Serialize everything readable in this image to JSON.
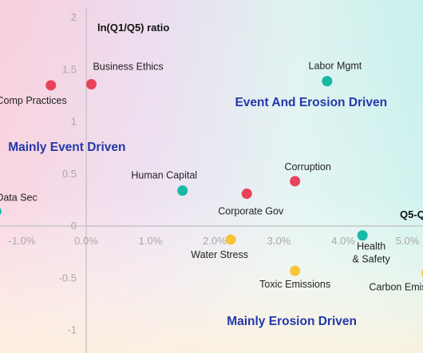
{
  "chart_data": {
    "type": "scatter",
    "ylabel": "ln(Q1/Q5) ratio",
    "xlabel": "Q5-Q",
    "xlim": [
      -1.3,
      5.3
    ],
    "ylim": [
      -1.0,
      2.0
    ],
    "x_ticks": [
      {
        "value": -1.0,
        "label": "-1.0%"
      },
      {
        "value": 0.0,
        "label": "0.0%"
      },
      {
        "value": 1.0,
        "label": "1.0%"
      },
      {
        "value": 2.0,
        "label": "2.0%"
      },
      {
        "value": 3.0,
        "label": "3.0%"
      },
      {
        "value": 4.0,
        "label": "4.0%"
      },
      {
        "value": 5.0,
        "label": "5.0%"
      }
    ],
    "y_ticks": [
      {
        "value": 2.0,
        "label": "2"
      },
      {
        "value": 1.5,
        "label": "1.5"
      },
      {
        "value": 1.0,
        "label": "1"
      },
      {
        "value": 0.5,
        "label": "0.5"
      },
      {
        "value": 0.0,
        "label": "0"
      },
      {
        "value": -0.5,
        "label": "-0.5"
      },
      {
        "value": -1.0,
        "label": "-1"
      }
    ],
    "quadrant_labels": [
      {
        "text": "Event And Erosion Driven",
        "x": 3.5,
        "y": 1.15
      },
      {
        "text": "Mainly Event Driven",
        "x": -0.3,
        "y": 0.72
      },
      {
        "text": "Mainly Erosion Driven",
        "x": 3.2,
        "y": -0.95
      }
    ],
    "colors": {
      "red": "#e8435a",
      "teal": "#17b8a4",
      "yellow": "#f7c43a"
    },
    "points": [
      {
        "name": "Business Ethics",
        "x": 0.08,
        "y": 1.36,
        "color": "red"
      },
      {
        "name": "Comp Practices",
        "x": -0.55,
        "y": 1.35,
        "color": "red"
      },
      {
        "name": "Labor Mgmt",
        "x": 3.75,
        "y": 1.39,
        "color": "teal"
      },
      {
        "name": "Corruption",
        "x": 3.25,
        "y": 0.43,
        "color": "red"
      },
      {
        "name": "Corporate Gov",
        "x": 2.5,
        "y": 0.31,
        "color": "red"
      },
      {
        "name": "Human Capital",
        "x": 1.5,
        "y": 0.34,
        "color": "teal"
      },
      {
        "name": "Data Sec",
        "x": -1.4,
        "y": 0.14,
        "color": "teal"
      },
      {
        "name": "Water Stress",
        "x": 2.25,
        "y": -0.13,
        "color": "yellow"
      },
      {
        "name": "Health & Safety",
        "x": 4.3,
        "y": -0.09,
        "color": "teal"
      },
      {
        "name": "Toxic Emissions",
        "x": 3.25,
        "y": -0.43,
        "color": "yellow"
      },
      {
        "name": "Carbon Emis",
        "x": 5.3,
        "y": -0.45,
        "color": "yellow"
      }
    ]
  }
}
